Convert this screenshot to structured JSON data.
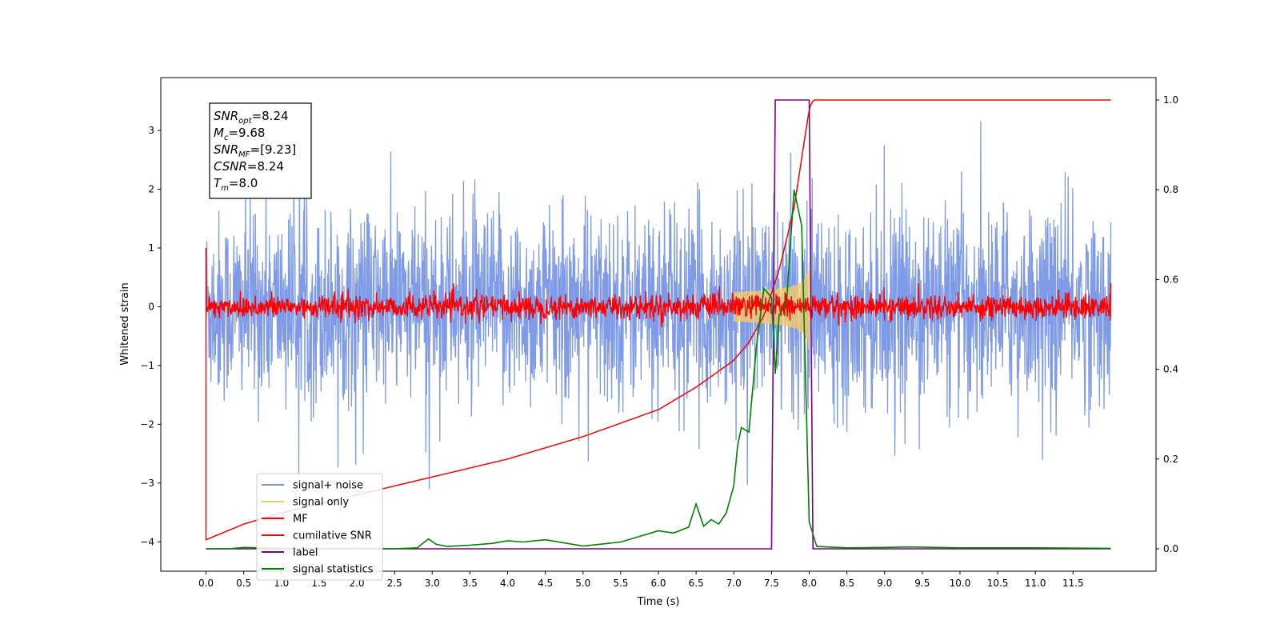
{
  "chart_data": {
    "type": "line",
    "title": "",
    "xlabel": "Time (s)",
    "ylabel": "Whitened strain",
    "xlim": [
      -0.6,
      12.6
    ],
    "ylim": [
      -4.5,
      3.9
    ],
    "y2lim": [
      -0.05,
      1.05
    ],
    "x_ticks": [
      0.0,
      0.5,
      1.0,
      1.5,
      2.0,
      2.5,
      3.0,
      3.5,
      4.0,
      4.5,
      5.0,
      5.5,
      6.0,
      6.5,
      7.0,
      7.5,
      8.0,
      8.5,
      9.0,
      9.5,
      10.0,
      10.5,
      11.0,
      11.5
    ],
    "x_tick_labels": [
      "0.0",
      "0.5",
      "1.0",
      "1.5",
      "2.0",
      "2.5",
      "3.0",
      "3.5",
      "4.0",
      "4.5",
      "5.0",
      "5.5",
      "6.0",
      "6.5",
      "7.0",
      "7.5",
      "8.0",
      "8.5",
      "9.0",
      "9.5",
      "10.0",
      "10.5",
      "11.0",
      "11.5"
    ],
    "y_ticks": [
      -4,
      -3,
      -2,
      -1,
      0,
      1,
      2,
      3
    ],
    "y_tick_labels": [
      "−4",
      "−3",
      "−2",
      "−1",
      "0",
      "1",
      "2",
      "3"
    ],
    "y2_ticks": [
      0.0,
      0.2,
      0.4,
      0.6,
      0.8,
      1.0
    ],
    "y2_tick_labels": [
      "0.0",
      "0.2",
      "0.4",
      "0.6",
      "0.8",
      "1.0"
    ],
    "grid": false,
    "legend_position": "lower-left",
    "annotation": {
      "lines": [
        {
          "var": "SNR",
          "sub": "opt",
          "value": "=8.24"
        },
        {
          "var": "M",
          "sub": "c",
          "value": "=9.68"
        },
        {
          "var": "SNR",
          "sub": "MF",
          "value": "=[9.23]"
        },
        {
          "var": "CSNR",
          "sub": "",
          "value": "=8.24"
        },
        {
          "var": "T",
          "sub": "m",
          "value": "=8.0"
        }
      ]
    },
    "series": [
      {
        "name": "signal+ noise",
        "axis": "left",
        "color": "#7895e6",
        "amplitude_typical": 1.3,
        "amplitude_peak": 3.5,
        "x_range": [
          0.0,
          12.0
        ]
      },
      {
        "name": "signal only",
        "axis": "left",
        "color": "#f5c96b",
        "x_range": [
          7.0,
          8.05
        ],
        "peak_amplitude": 0.8,
        "merger_time": 8.0
      },
      {
        "name": "MF",
        "axis": "left",
        "color": "#ff0000",
        "amplitude_typical": 0.15,
        "x_range": [
          0.0,
          12.0
        ]
      },
      {
        "name": "cumilative SNR",
        "axis": "right",
        "color": "#ff0000",
        "x": [
          0.0,
          0.5,
          1.0,
          1.5,
          2.0,
          2.5,
          3.0,
          3.5,
          4.0,
          4.5,
          5.0,
          5.5,
          6.0,
          6.5,
          7.0,
          7.2,
          7.4,
          7.6,
          7.8,
          7.9,
          8.0,
          8.05,
          12.0
        ],
        "values": [
          0.02,
          0.055,
          0.08,
          0.1,
          0.12,
          0.14,
          0.16,
          0.18,
          0.2,
          0.225,
          0.25,
          0.28,
          0.31,
          0.36,
          0.42,
          0.46,
          0.52,
          0.62,
          0.76,
          0.87,
          0.98,
          1.0,
          1.0
        ]
      },
      {
        "name": "label",
        "axis": "right",
        "color": "#800080",
        "x": [
          0.0,
          7.5,
          7.55,
          8.0,
          8.05,
          12.0
        ],
        "values": [
          0.0,
          0.0,
          1.0,
          1.0,
          0.0,
          0.0
        ]
      },
      {
        "name": "signal statistics",
        "axis": "right",
        "color": "#008000",
        "x": [
          0.0,
          0.3,
          0.5,
          1.0,
          1.5,
          2.0,
          2.5,
          2.8,
          2.95,
          3.05,
          3.2,
          3.5,
          3.8,
          4.0,
          4.2,
          4.5,
          5.0,
          5.5,
          5.8,
          6.0,
          6.2,
          6.4,
          6.5,
          6.6,
          6.7,
          6.8,
          6.9,
          7.0,
          7.05,
          7.1,
          7.2,
          7.3,
          7.4,
          7.5,
          7.55,
          7.6,
          7.7,
          7.8,
          7.9,
          8.0,
          8.1,
          8.5,
          9.0,
          9.3,
          10.0,
          11.0,
          12.0
        ],
        "values": [
          0.0,
          0.0,
          0.003,
          0.001,
          0.0,
          0.001,
          0.0,
          0.002,
          0.022,
          0.01,
          0.005,
          0.008,
          0.012,
          0.018,
          0.015,
          0.02,
          0.006,
          0.015,
          0.03,
          0.04,
          0.035,
          0.048,
          0.1,
          0.05,
          0.065,
          0.055,
          0.08,
          0.14,
          0.23,
          0.27,
          0.26,
          0.45,
          0.58,
          0.56,
          0.39,
          0.52,
          0.55,
          0.8,
          0.72,
          0.06,
          0.005,
          0.002,
          0.003,
          0.004,
          0.002,
          0.002,
          0.001
        ]
      }
    ]
  }
}
